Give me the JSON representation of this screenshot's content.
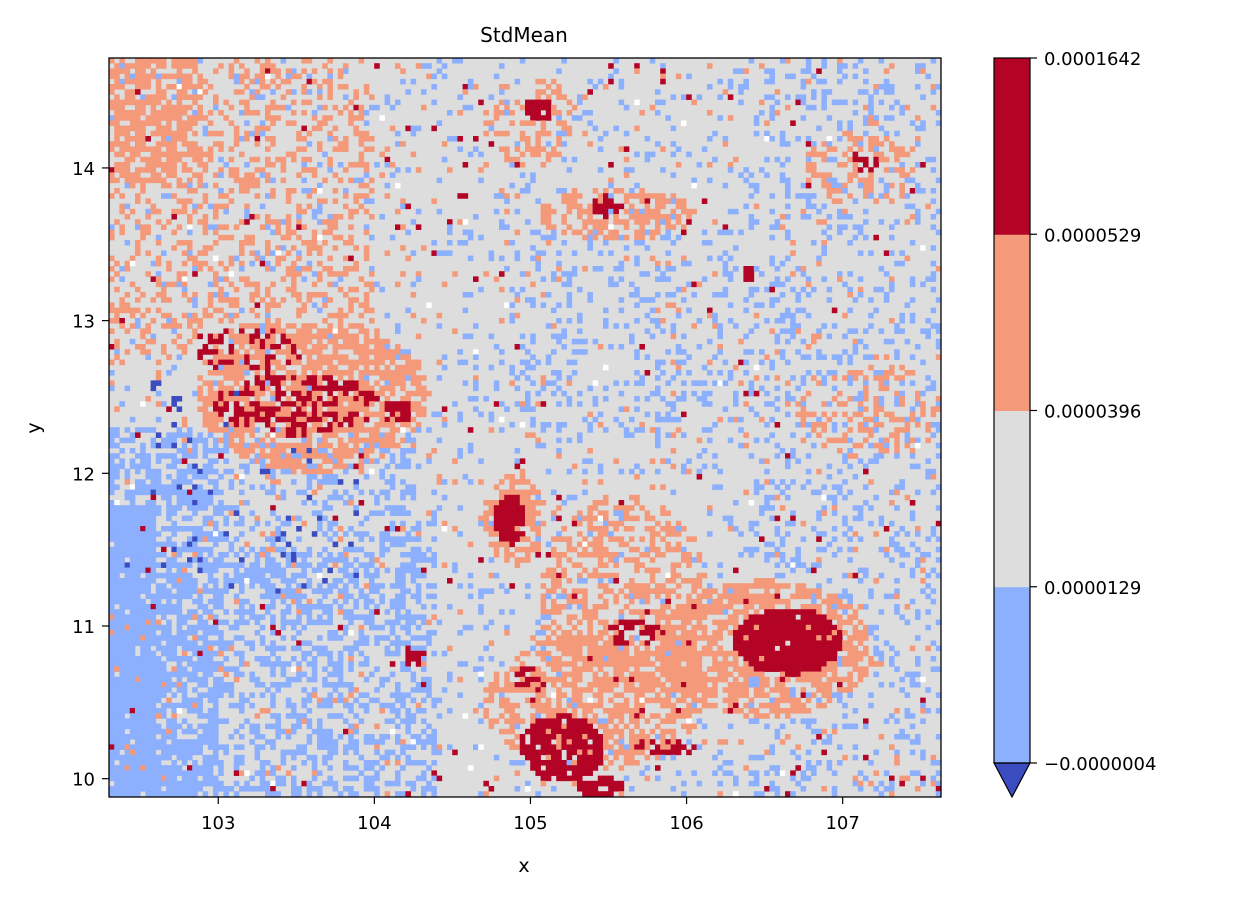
{
  "chart_data": {
    "type": "heatmap",
    "title": "StdMean",
    "xlabel": "x",
    "ylabel": "y",
    "xlim": [
      102.3,
      107.63
    ],
    "ylim": [
      9.88,
      14.72
    ],
    "xticks": [
      103,
      104,
      105,
      106,
      107
    ],
    "yticks": [
      10,
      11,
      12,
      13,
      14
    ],
    "colorbar": {
      "boundaries": [
        -4e-07,
        1.29e-05,
        3.96e-05,
        5.29e-05,
        0.0001642
      ],
      "tick_labels": [
        "−0.0000004",
        "0.0000129",
        "0.0000396",
        "0.0000529",
        "0.0001642"
      ],
      "colors": [
        "#8caffe",
        "#dddddd",
        "#f49a7b",
        "#b40426"
      ],
      "under_color": "#3b4cc0",
      "extend": "min"
    },
    "palette": {
      "under": "#3b4cc0",
      "low": "#8caffe",
      "mid": "#dddddd",
      "high": "#f49a7b",
      "top": "#b40426",
      "nodata": "#ffffff"
    },
    "background_class": "mid",
    "regions": [
      {
        "cls": "low",
        "shape": "rect",
        "x": [
          102.3,
          103.0
        ],
        "y": [
          9.88,
          12.3
        ],
        "density": 0.55
      },
      {
        "cls": "low",
        "shape": "rect",
        "x": [
          102.3,
          104.4
        ],
        "y": [
          9.88,
          11.5
        ],
        "density": 0.35
      },
      {
        "cls": "low",
        "shape": "rect",
        "x": [
          102.3,
          102.6
        ],
        "y": [
          9.88,
          11.8
        ],
        "density": 0.85
      },
      {
        "cls": "low",
        "shape": "rect",
        "x": [
          103.0,
          104.3
        ],
        "y": [
          11.0,
          12.3
        ],
        "density": 0.3
      },
      {
        "cls": "low",
        "shape": "rect",
        "x": [
          102.3,
          107.63
        ],
        "y": [
          9.88,
          14.72
        ],
        "density": 0.08
      },
      {
        "cls": "low",
        "shape": "rect",
        "x": [
          106.4,
          107.63
        ],
        "y": [
          9.88,
          14.72
        ],
        "density": 0.12
      },
      {
        "cls": "low",
        "shape": "rect",
        "x": [
          104.8,
          106.4
        ],
        "y": [
          12.2,
          13.6
        ],
        "density": 0.12
      },
      {
        "cls": "under",
        "shape": "rect",
        "x": [
          102.4,
          104.0
        ],
        "y": [
          11.2,
          12.6
        ],
        "density": 0.035
      },
      {
        "cls": "high",
        "shape": "rect",
        "x": [
          102.3,
          104.0
        ],
        "y": [
          12.7,
          14.72
        ],
        "density": 0.28
      },
      {
        "cls": "high",
        "shape": "rect",
        "x": [
          102.3,
          102.9
        ],
        "y": [
          13.9,
          14.72
        ],
        "density": 0.5
      },
      {
        "cls": "high",
        "shape": "ellipse",
        "cx": 103.6,
        "cy": 12.5,
        "rx": 0.75,
        "ry": 0.5,
        "density": 0.6
      },
      {
        "cls": "high",
        "shape": "ellipse",
        "cx": 105.55,
        "cy": 13.7,
        "rx": 0.5,
        "ry": 0.18,
        "density": 0.55
      },
      {
        "cls": "high",
        "shape": "ellipse",
        "cx": 105.6,
        "cy": 11.2,
        "rx": 0.55,
        "ry": 0.65,
        "density": 0.45
      },
      {
        "cls": "high",
        "shape": "ellipse",
        "cx": 105.4,
        "cy": 10.5,
        "rx": 0.7,
        "ry": 0.45,
        "density": 0.5
      },
      {
        "cls": "high",
        "shape": "ellipse",
        "cx": 106.5,
        "cy": 10.85,
        "rx": 0.7,
        "ry": 0.45,
        "density": 0.65
      },
      {
        "cls": "high",
        "shape": "ellipse",
        "cx": 104.9,
        "cy": 11.7,
        "rx": 0.2,
        "ry": 0.3,
        "density": 0.7
      },
      {
        "cls": "high",
        "shape": "ellipse",
        "cx": 105.0,
        "cy": 14.3,
        "rx": 0.3,
        "ry": 0.3,
        "density": 0.35
      },
      {
        "cls": "high",
        "shape": "ellipse",
        "cx": 107.2,
        "cy": 12.4,
        "rx": 0.5,
        "ry": 0.3,
        "density": 0.3
      },
      {
        "cls": "high",
        "shape": "ellipse",
        "cx": 107.1,
        "cy": 14.0,
        "rx": 0.35,
        "ry": 0.25,
        "density": 0.3
      },
      {
        "cls": "high",
        "shape": "rect",
        "x": [
          102.3,
          107.63
        ],
        "y": [
          9.88,
          14.72
        ],
        "density": 0.03
      },
      {
        "cls": "top",
        "shape": "ellipse",
        "cx": 103.5,
        "cy": 12.45,
        "rx": 0.55,
        "ry": 0.2,
        "density": 0.45
      },
      {
        "cls": "top",
        "shape": "ellipse",
        "cx": 103.2,
        "cy": 12.8,
        "rx": 0.35,
        "ry": 0.15,
        "density": 0.3
      },
      {
        "cls": "top",
        "shape": "ellipse",
        "cx": 104.15,
        "cy": 12.4,
        "rx": 0.1,
        "ry": 0.08,
        "density": 0.9
      },
      {
        "cls": "top",
        "shape": "ellipse",
        "cx": 104.87,
        "cy": 11.7,
        "rx": 0.1,
        "ry": 0.17,
        "density": 0.9
      },
      {
        "cls": "top",
        "shape": "ellipse",
        "cx": 106.65,
        "cy": 10.9,
        "rx": 0.35,
        "ry": 0.22,
        "density": 0.95
      },
      {
        "cls": "top",
        "shape": "ellipse",
        "cx": 105.2,
        "cy": 10.2,
        "rx": 0.28,
        "ry": 0.22,
        "density": 0.8
      },
      {
        "cls": "top",
        "shape": "ellipse",
        "cx": 105.45,
        "cy": 9.95,
        "rx": 0.15,
        "ry": 0.07,
        "density": 0.9
      },
      {
        "cls": "top",
        "shape": "ellipse",
        "cx": 105.85,
        "cy": 10.2,
        "rx": 0.2,
        "ry": 0.06,
        "density": 0.6
      },
      {
        "cls": "top",
        "shape": "ellipse",
        "cx": 105.05,
        "cy": 14.38,
        "rx": 0.1,
        "ry": 0.07,
        "density": 0.85
      },
      {
        "cls": "top",
        "shape": "ellipse",
        "cx": 105.5,
        "cy": 13.75,
        "rx": 0.1,
        "ry": 0.07,
        "density": 0.6
      },
      {
        "cls": "top",
        "shape": "ellipse",
        "cx": 105.65,
        "cy": 10.95,
        "rx": 0.2,
        "ry": 0.08,
        "density": 0.5
      },
      {
        "cls": "top",
        "shape": "ellipse",
        "cx": 105.0,
        "cy": 10.65,
        "rx": 0.1,
        "ry": 0.1,
        "density": 0.55
      },
      {
        "cls": "top",
        "shape": "ellipse",
        "cx": 104.25,
        "cy": 10.8,
        "rx": 0.07,
        "ry": 0.07,
        "density": 0.7
      },
      {
        "cls": "top",
        "shape": "ellipse",
        "cx": 107.15,
        "cy": 14.05,
        "rx": 0.1,
        "ry": 0.07,
        "density": 0.6
      },
      {
        "cls": "top",
        "shape": "ellipse",
        "cx": 106.4,
        "cy": 13.3,
        "rx": 0.05,
        "ry": 0.05,
        "density": 0.8
      },
      {
        "cls": "top",
        "shape": "rect",
        "x": [
          102.3,
          107.63
        ],
        "y": [
          9.88,
          14.72
        ],
        "density": 0.008
      },
      {
        "cls": "nodata",
        "shape": "rect",
        "x": [
          102.3,
          107.63
        ],
        "y": [
          9.88,
          14.72
        ],
        "density": 0.0025
      }
    ]
  }
}
